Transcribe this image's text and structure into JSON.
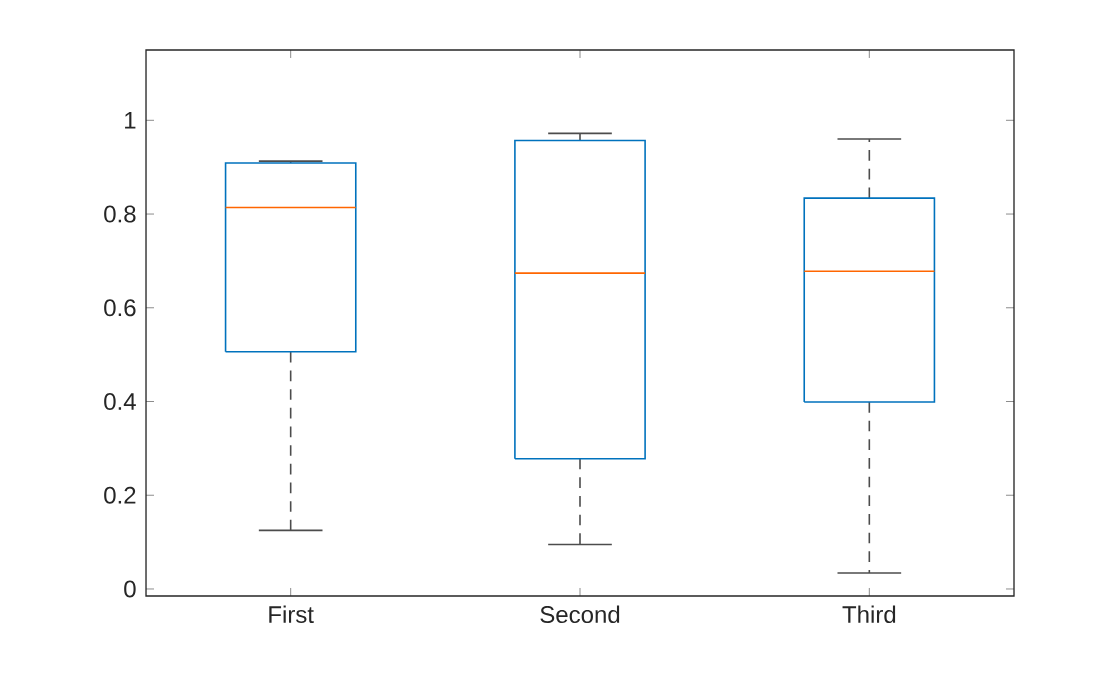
{
  "chart_data": {
    "type": "box",
    "categories": [
      "First",
      "Second",
      "Third"
    ],
    "series": [
      {
        "color": "#0072bd",
        "boxes": [
          {
            "low": 0.125,
            "q1": 0.506,
            "median": 0.814,
            "q3": 0.909,
            "high": 0.913
          },
          {
            "low": 0.095,
            "q1": 0.278,
            "median": 0.674,
            "q3": 0.957,
            "high": 0.972
          },
          {
            "low": 0.034,
            "q1": 0.399,
            "median": 0.678,
            "q3": 0.834,
            "high": 0.96
          }
        ]
      }
    ],
    "ylim": [
      -0.015,
      1.15
    ],
    "yticks": [
      0,
      0.2,
      0.4,
      0.6,
      0.8,
      1
    ]
  }
}
